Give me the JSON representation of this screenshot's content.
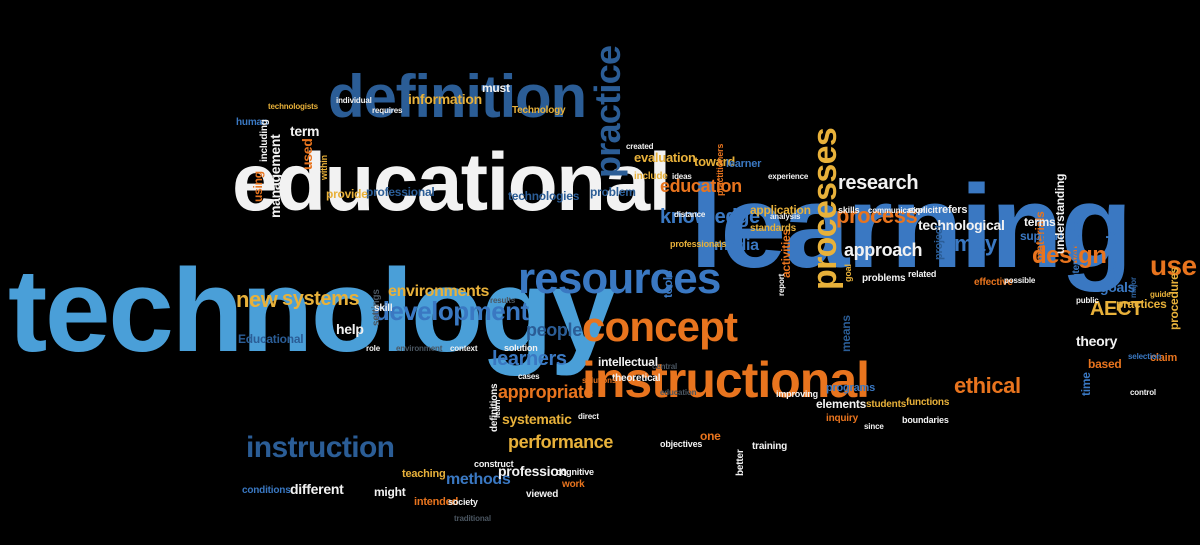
{
  "palette": {
    "white": "#f2f2f2",
    "blue_light": "#4a9fd8",
    "blue": "#3a78c2",
    "blue_dark": "#2b5d96",
    "orange": "#e8741e",
    "gold": "#e8b13a",
    "gray": "#9a9a9a",
    "dim": "#4a5560"
  },
  "words": [
    {
      "text": "technology",
      "color": "blue_light"
    },
    {
      "text": "learning",
      "color": "blue"
    },
    {
      "text": "educational",
      "color": "white"
    },
    {
      "text": "definition",
      "color": "blue_dark"
    },
    {
      "text": "instructional",
      "color": "orange"
    },
    {
      "text": "resources",
      "color": "blue"
    },
    {
      "text": "concept",
      "color": "orange"
    },
    {
      "text": "practice",
      "color": "blue_dark"
    },
    {
      "text": "processes",
      "color": "gold"
    },
    {
      "text": "instruction",
      "color": "blue_dark"
    },
    {
      "text": "development",
      "color": "blue"
    },
    {
      "text": "research",
      "color": "white"
    },
    {
      "text": "process",
      "color": "orange"
    },
    {
      "text": "design",
      "color": "orange"
    },
    {
      "text": "use",
      "color": "orange"
    },
    {
      "text": "may",
      "color": "blue"
    },
    {
      "text": "knowledge",
      "color": "blue"
    },
    {
      "text": "education",
      "color": "orange"
    },
    {
      "text": "new",
      "color": "gold"
    },
    {
      "text": "systems",
      "color": "gold"
    },
    {
      "text": "environments",
      "color": "gold"
    },
    {
      "text": "learners",
      "color": "blue"
    },
    {
      "text": "people",
      "color": "blue_dark"
    },
    {
      "text": "appropriate",
      "color": "orange"
    },
    {
      "text": "performance",
      "color": "gold"
    },
    {
      "text": "ethical",
      "color": "orange"
    },
    {
      "text": "approach",
      "color": "white"
    },
    {
      "text": "technological",
      "color": "white"
    },
    {
      "text": "AECT",
      "color": "gold"
    },
    {
      "text": "theory",
      "color": "white"
    },
    {
      "text": "goals",
      "color": "blue"
    },
    {
      "text": "management",
      "color": "white"
    },
    {
      "text": "term",
      "color": "white"
    },
    {
      "text": "information",
      "color": "gold"
    },
    {
      "text": "evaluation",
      "color": "gold"
    },
    {
      "text": "toward",
      "color": "gold"
    },
    {
      "text": "media",
      "color": "blue"
    },
    {
      "text": "systematic",
      "color": "gold"
    },
    {
      "text": "methods",
      "color": "blue"
    },
    {
      "text": "profession",
      "color": "white"
    },
    {
      "text": "intellectual",
      "color": "white"
    },
    {
      "text": "theoretical",
      "color": "white"
    },
    {
      "text": "different",
      "color": "white"
    },
    {
      "text": "help",
      "color": "white"
    },
    {
      "text": "Educational",
      "color": "blue_dark"
    },
    {
      "text": "professional",
      "color": "blue_dark"
    },
    {
      "text": "technologies",
      "color": "blue_dark"
    },
    {
      "text": "provide",
      "color": "gold"
    },
    {
      "text": "problem",
      "color": "blue_dark"
    },
    {
      "text": "materials",
      "color": "orange"
    },
    {
      "text": "activities",
      "color": "orange"
    },
    {
      "text": "tools",
      "color": "blue"
    },
    {
      "text": "terms",
      "color": "white"
    },
    {
      "text": "support",
      "color": "blue"
    },
    {
      "text": "based",
      "color": "orange"
    },
    {
      "text": "time",
      "color": "blue"
    },
    {
      "text": "elements",
      "color": "white"
    },
    {
      "text": "programs",
      "color": "blue"
    },
    {
      "text": "improving",
      "color": "white"
    },
    {
      "text": "one",
      "color": "orange"
    },
    {
      "text": "better",
      "color": "white"
    },
    {
      "text": "training",
      "color": "white"
    },
    {
      "text": "might",
      "color": "white"
    },
    {
      "text": "teaching",
      "color": "gold"
    },
    {
      "text": "intended",
      "color": "orange"
    },
    {
      "text": "must",
      "color": "white"
    },
    {
      "text": "Technology",
      "color": "gold"
    },
    {
      "text": "human",
      "color": "blue"
    },
    {
      "text": "using",
      "color": "orange"
    },
    {
      "text": "used",
      "color": "orange"
    },
    {
      "text": "technologists",
      "color": "gold"
    },
    {
      "text": "within",
      "color": "gold"
    },
    {
      "text": "include",
      "color": "gold"
    },
    {
      "text": "learner",
      "color": "blue"
    },
    {
      "text": "application",
      "color": "gold"
    },
    {
      "text": "standards",
      "color": "gold"
    },
    {
      "text": "professionals",
      "color": "gold"
    },
    {
      "text": "problems",
      "color": "white"
    },
    {
      "text": "effective",
      "color": "orange"
    },
    {
      "text": "practices",
      "color": "gold"
    },
    {
      "text": "claim",
      "color": "orange"
    },
    {
      "text": "refers",
      "color": "white"
    },
    {
      "text": "example",
      "color": "blue"
    },
    {
      "text": "understanding",
      "color": "white"
    },
    {
      "text": "interventions",
      "color": "blue"
    },
    {
      "text": "public",
      "color": "white"
    },
    {
      "text": "procedures",
      "color": "gold"
    },
    {
      "text": "guide",
      "color": "gold"
    },
    {
      "text": "means",
      "color": "blue_dark"
    },
    {
      "text": "functions",
      "color": "gold"
    },
    {
      "text": "students",
      "color": "gold"
    },
    {
      "text": "inquiry",
      "color": "orange"
    },
    {
      "text": "boundaries",
      "color": "white"
    },
    {
      "text": "skills",
      "color": "white"
    },
    {
      "text": "explicit",
      "color": "white"
    },
    {
      "text": "project",
      "color": "blue_dark"
    },
    {
      "text": "related",
      "color": "white"
    },
    {
      "text": "possible",
      "color": "white"
    },
    {
      "text": "selection",
      "color": "blue"
    },
    {
      "text": "control",
      "color": "white"
    },
    {
      "text": "major",
      "color": "blue_dark"
    },
    {
      "text": "goal",
      "color": "gold"
    },
    {
      "text": "created",
      "color": "white"
    },
    {
      "text": "ideas",
      "color": "white"
    },
    {
      "text": "distance",
      "color": "white"
    },
    {
      "text": "analysis",
      "color": "white"
    },
    {
      "text": "experience",
      "color": "white"
    },
    {
      "text": "communication",
      "color": "white"
    },
    {
      "text": "individual",
      "color": "white"
    },
    {
      "text": "requires",
      "color": "white"
    },
    {
      "text": "including",
      "color": "white"
    },
    {
      "text": "settings",
      "color": "dim"
    },
    {
      "text": "skill",
      "color": "white"
    },
    {
      "text": "role",
      "color": "white"
    },
    {
      "text": "environment",
      "color": "dim"
    },
    {
      "text": "context",
      "color": "white"
    },
    {
      "text": "results",
      "color": "dim"
    },
    {
      "text": "solution",
      "color": "white"
    },
    {
      "text": "solutions",
      "color": "orange"
    },
    {
      "text": "cases",
      "color": "white"
    },
    {
      "text": "central",
      "color": "dim"
    },
    {
      "text": "education",
      "color": "dim"
    },
    {
      "text": "definitions",
      "color": "white"
    },
    {
      "text": "learn",
      "color": "white"
    },
    {
      "text": "direct",
      "color": "white"
    },
    {
      "text": "objectives",
      "color": "white"
    },
    {
      "text": "construct",
      "color": "white"
    },
    {
      "text": "conditions",
      "color": "blue"
    },
    {
      "text": "cognitive",
      "color": "white"
    },
    {
      "text": "work",
      "color": "orange"
    },
    {
      "text": "society",
      "color": "white"
    },
    {
      "text": "viewed",
      "color": "white"
    },
    {
      "text": "traditional",
      "color": "dim"
    },
    {
      "text": "practitioners",
      "color": "orange"
    },
    {
      "text": "report",
      "color": "white"
    },
    {
      "text": "since",
      "color": "white"
    }
  ]
}
